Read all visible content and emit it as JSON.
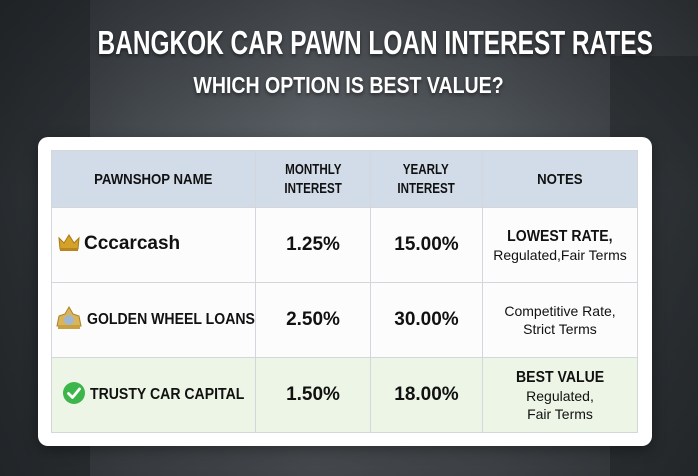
{
  "title": "BANGKOK CAR PAWN LOAN INTEREST RATES",
  "subtitle": "WHICH OPTION IS BEST VALUE?",
  "table": {
    "headers": [
      "PAWNSHOP NAME",
      [
        "MONTHLY",
        "INTEREST"
      ],
      [
        "YEARLY",
        "INTEREST"
      ],
      "NOTES"
    ],
    "rows": [
      {
        "icon": "crown-icon",
        "name": "Cccarcash",
        "monthly": "1.25%",
        "yearly": "15.00%",
        "note_bold": "LOWEST RATE,",
        "note": [
          "Regulated,Fair Terms"
        ],
        "highlight": false
      },
      {
        "icon": "temple-crest-icon",
        "name": "GOLDEN WHEEL LOANS",
        "monthly": "2.50%",
        "yearly": "30.00%",
        "note_bold": "",
        "note": [
          "Competitive Rate,",
          "Strict Terms"
        ],
        "highlight": false
      },
      {
        "icon": "check-circle-icon",
        "name": "TRUSTY CAR CAPITAL",
        "monthly": "1.50%",
        "yearly": "18.00%",
        "note_bold": "BEST VALUE",
        "note": [
          "Regulated,",
          "Fair Terms"
        ],
        "highlight": true
      }
    ]
  },
  "colors": {
    "header_bg": "#d2dce8",
    "highlight_bg": "#edf5e6",
    "check": "#3cb54a",
    "gold": "#d4a22a"
  }
}
